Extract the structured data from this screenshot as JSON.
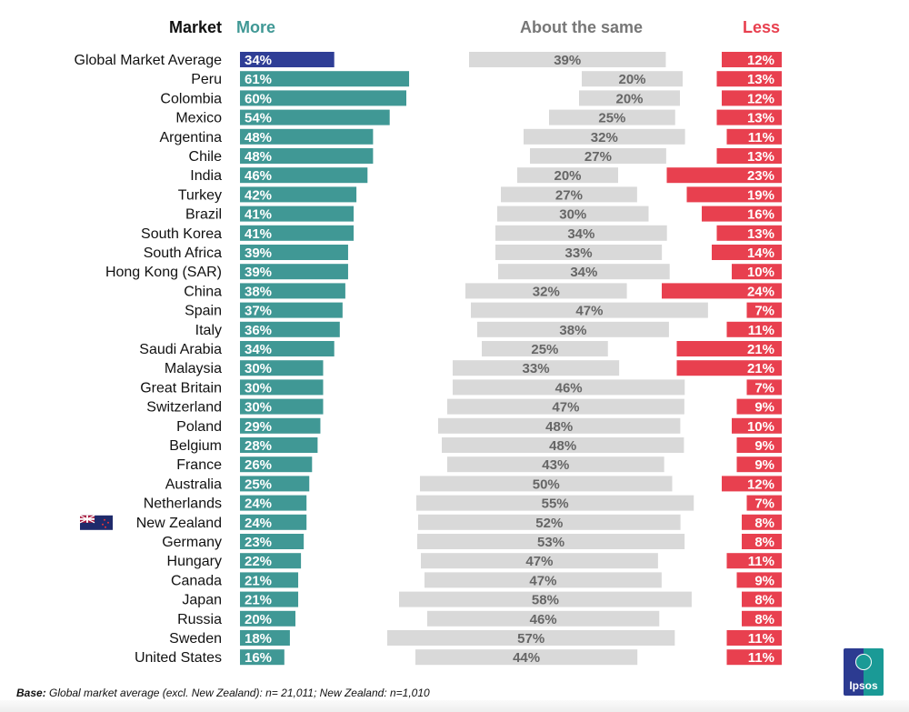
{
  "headers": {
    "market": "Market",
    "more": "More",
    "same": "About the same",
    "less": "Less"
  },
  "colors": {
    "more": "#409895",
    "average": "#2f3e96",
    "same": "#d9d9d9",
    "less": "#e8404f",
    "same_text": "#666666"
  },
  "footer": {
    "base_label": "Base:",
    "base_text": " Global market average (excl. New Zealand): n= 21,011; New Zealand: n=1,010"
  },
  "logo": {
    "text": "Ipsos"
  },
  "chart_data": {
    "type": "bar",
    "title": "",
    "orientation": "horizontal",
    "legend": "top",
    "series_names": [
      "More",
      "About the same",
      "Less"
    ],
    "rows": [
      {
        "market": "Global Market Average",
        "more": 34,
        "same": 39,
        "less": 12,
        "highlight": "average"
      },
      {
        "market": "Peru",
        "more": 61,
        "same": 20,
        "less": 13
      },
      {
        "market": "Colombia",
        "more": 60,
        "same": 20,
        "less": 12
      },
      {
        "market": "Mexico",
        "more": 54,
        "same": 25,
        "less": 13
      },
      {
        "market": "Argentina",
        "more": 48,
        "same": 32,
        "less": 11
      },
      {
        "market": "Chile",
        "more": 48,
        "same": 27,
        "less": 13
      },
      {
        "market": "India",
        "more": 46,
        "same": 20,
        "less": 23
      },
      {
        "market": "Turkey",
        "more": 42,
        "same": 27,
        "less": 19
      },
      {
        "market": "Brazil",
        "more": 41,
        "same": 30,
        "less": 16
      },
      {
        "market": "South Korea",
        "more": 41,
        "same": 34,
        "less": 13
      },
      {
        "market": "South Africa",
        "more": 39,
        "same": 33,
        "less": 14
      },
      {
        "market": "Hong Kong (SAR)",
        "more": 39,
        "same": 34,
        "less": 10
      },
      {
        "market": "China",
        "more": 38,
        "same": 32,
        "less": 24
      },
      {
        "market": "Spain",
        "more": 37,
        "same": 47,
        "less": 7
      },
      {
        "market": "Italy",
        "more": 36,
        "same": 38,
        "less": 11
      },
      {
        "market": "Saudi Arabia",
        "more": 34,
        "same": 25,
        "less": 21
      },
      {
        "market": "Malaysia",
        "more": 30,
        "same": 33,
        "less": 21
      },
      {
        "market": "Great Britain",
        "more": 30,
        "same": 46,
        "less": 7
      },
      {
        "market": "Switzerland",
        "more": 30,
        "same": 47,
        "less": 9
      },
      {
        "market": "Poland",
        "more": 29,
        "same": 48,
        "less": 10
      },
      {
        "market": "Belgium",
        "more": 28,
        "same": 48,
        "less": 9
      },
      {
        "market": "France",
        "more": 26,
        "same": 43,
        "less": 9
      },
      {
        "market": "Australia",
        "more": 25,
        "same": 50,
        "less": 12
      },
      {
        "market": "Netherlands",
        "more": 24,
        "same": 55,
        "less": 7
      },
      {
        "market": "New Zealand",
        "more": 24,
        "same": 52,
        "less": 8,
        "flag": "new-zealand-flag"
      },
      {
        "market": "Germany",
        "more": 23,
        "same": 53,
        "less": 8
      },
      {
        "market": "Hungary",
        "more": 22,
        "same": 47,
        "less": 11
      },
      {
        "market": "Canada",
        "more": 21,
        "same": 47,
        "less": 9
      },
      {
        "market": "Japan",
        "more": 21,
        "same": 58,
        "less": 8
      },
      {
        "market": "Russia",
        "more": 20,
        "same": 46,
        "less": 8
      },
      {
        "market": "Sweden",
        "more": 18,
        "same": 57,
        "less": 11
      },
      {
        "market": "United States",
        "more": 16,
        "same": 44,
        "less": 11
      }
    ]
  }
}
